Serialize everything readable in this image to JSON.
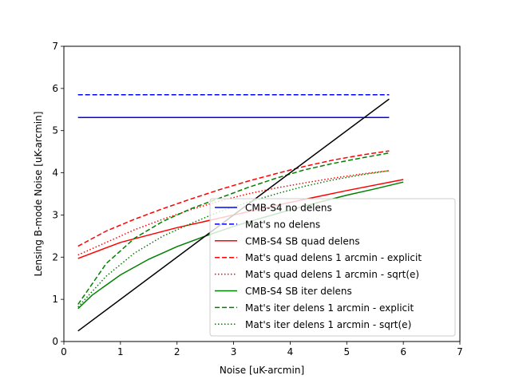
{
  "chart_data": {
    "type": "line",
    "title": "",
    "xlabel": "Noise [uK-arcmin]",
    "ylabel": "Lensing B-mode Noise [uK-arcmin]",
    "xlim": [
      0,
      7
    ],
    "ylim": [
      0,
      7
    ],
    "xticks": [
      0,
      1,
      2,
      3,
      4,
      5,
      6,
      7
    ],
    "yticks": [
      0,
      1,
      2,
      3,
      4,
      5,
      6,
      7
    ],
    "xtick_labels": [
      "0",
      "1",
      "2",
      "3",
      "4",
      "5",
      "6",
      "7"
    ],
    "ytick_labels": [
      "0",
      "1",
      "2",
      "3",
      "4",
      "5",
      "6",
      "7"
    ],
    "grid": false,
    "legend_position": "bottom-right",
    "series": [
      {
        "name": "CMB-S4 no delens",
        "color": "#0000ff",
        "dash": "solid",
        "in_legend": true,
        "x": [
          0.25,
          5.75
        ],
        "y": [
          5.31,
          5.31
        ]
      },
      {
        "name": "Mat's no delens",
        "color": "#0000ff",
        "dash": "dashed",
        "in_legend": true,
        "x": [
          0.25,
          5.75
        ],
        "y": [
          5.85,
          5.85
        ]
      },
      {
        "name": "CMB-S4 SB quad delens",
        "color": "#ff0000",
        "dash": "solid",
        "in_legend": true,
        "x": [
          0.25,
          1.0,
          2.0,
          3.0,
          4.0,
          5.0,
          6.0
        ],
        "y": [
          1.97,
          2.35,
          2.7,
          3.0,
          3.3,
          3.58,
          3.84
        ]
      },
      {
        "name": "Mat's quad delens 1 arcmin - explicit",
        "color": "#ff0000",
        "dash": "dashed",
        "in_legend": true,
        "x": [
          0.25,
          0.75,
          1.25,
          1.75,
          2.25,
          2.75,
          3.25,
          3.75,
          4.25,
          4.75,
          5.25,
          5.75
        ],
        "y": [
          2.26,
          2.62,
          2.9,
          3.15,
          3.38,
          3.6,
          3.8,
          3.98,
          4.15,
          4.3,
          4.42,
          4.52
        ]
      },
      {
        "name": "Mat's quad delens 1 arcmin - sqrt(e)",
        "color": "#ff0000",
        "dash": "dotted",
        "in_legend": true,
        "x": [
          0.25,
          0.75,
          1.25,
          1.75,
          2.25,
          2.75,
          3.25,
          3.75,
          4.25,
          4.75,
          5.25,
          5.75
        ],
        "y": [
          2.05,
          2.35,
          2.65,
          2.9,
          3.13,
          3.33,
          3.5,
          3.64,
          3.76,
          3.87,
          3.97,
          4.05
        ]
      },
      {
        "name": "CMB-S4 SB iter delens",
        "color": "#008000",
        "dash": "solid",
        "in_legend": true,
        "x": [
          0.25,
          0.5,
          1.0,
          1.5,
          2.0,
          2.5,
          3.0,
          3.5,
          4.0,
          4.5,
          5.0,
          5.5,
          6.0
        ],
        "y": [
          0.78,
          1.1,
          1.58,
          1.95,
          2.25,
          2.5,
          2.73,
          2.93,
          3.12,
          3.3,
          3.47,
          3.62,
          3.78
        ]
      },
      {
        "name": "Mat's iter delens 1 arcmin - explicit",
        "color": "#008000",
        "dash": "dashed",
        "in_legend": true,
        "x": [
          0.25,
          0.75,
          1.25,
          1.75,
          2.25,
          2.75,
          3.25,
          3.75,
          4.25,
          4.75,
          5.25,
          5.75
        ],
        "y": [
          0.88,
          1.85,
          2.45,
          2.85,
          3.15,
          3.4,
          3.65,
          3.87,
          4.07,
          4.22,
          4.35,
          4.47
        ]
      },
      {
        "name": "Mat's iter delens 1 arcmin - sqrt(e)",
        "color": "#008000",
        "dash": "dotted",
        "in_legend": true,
        "x": [
          0.25,
          0.75,
          1.25,
          1.75,
          2.25,
          2.75,
          3.25,
          3.75,
          4.25,
          4.75,
          5.25,
          5.75
        ],
        "y": [
          0.82,
          1.55,
          2.1,
          2.5,
          2.8,
          3.08,
          3.3,
          3.5,
          3.68,
          3.83,
          3.95,
          4.05
        ]
      },
      {
        "name": "",
        "color": "#000000",
        "dash": "solid",
        "in_legend": false,
        "x": [
          0.25,
          5.75
        ],
        "y": [
          0.25,
          5.75
        ]
      }
    ]
  }
}
